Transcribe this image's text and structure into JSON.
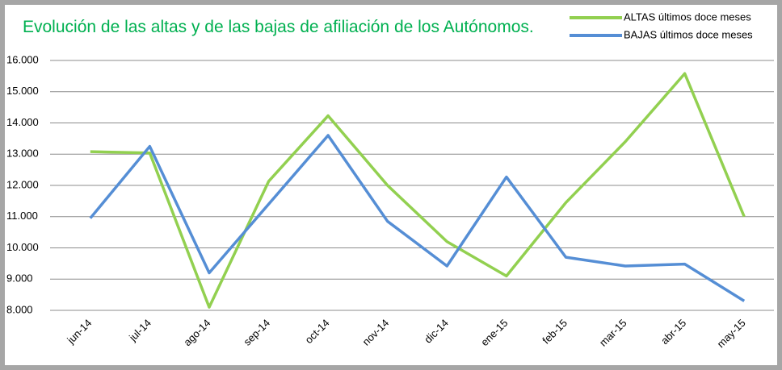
{
  "chart_data": {
    "type": "line",
    "title": "Evolución de las altas y de las bajas de afiliación de los Autónomos.",
    "categories": [
      "jun-14",
      "jul-14",
      "ago-14",
      "sep-14",
      "oct-14",
      "nov-14",
      "dic-14",
      "ene-15",
      "feb-15",
      "mar-15",
      "abr-15",
      "may-15"
    ],
    "series": [
      {
        "name": "ALTAS últimos doce meses",
        "color": "#92d050",
        "values": [
          13080,
          13040,
          8100,
          12130,
          14230,
          12000,
          10200,
          9100,
          11450,
          13400,
          15580,
          11000
        ]
      },
      {
        "name": "BAJAS últimos doce meses",
        "color": "#558ed5",
        "values": [
          10950,
          13250,
          9200,
          11400,
          13600,
          10850,
          9420,
          12270,
          9700,
          9420,
          9480,
          8300
        ]
      }
    ],
    "ylim": [
      8000,
      16000
    ],
    "yticks": [
      {
        "value": 8000,
        "label": "8.000"
      },
      {
        "value": 9000,
        "label": "9.000"
      },
      {
        "value": 10000,
        "label": "10.000"
      },
      {
        "value": 11000,
        "label": "11.000"
      },
      {
        "value": 12000,
        "label": "12.000"
      },
      {
        "value": 13000,
        "label": "13.000"
      },
      {
        "value": 14000,
        "label": "14.000"
      },
      {
        "value": 15000,
        "label": "15.000"
      },
      {
        "value": 16000,
        "label": "16.000"
      }
    ],
    "grid": true,
    "legend": "top-right"
  }
}
